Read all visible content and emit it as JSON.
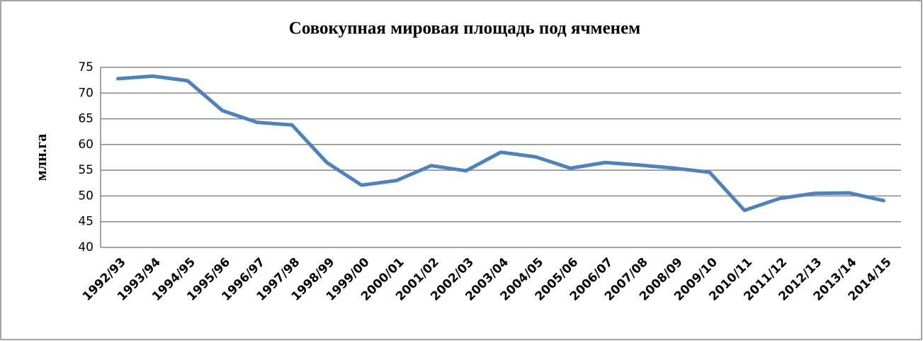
{
  "chart_data": {
    "type": "line",
    "title": "Совокупная мировая площадь под ячменем",
    "y_label": "млн.га",
    "categories": [
      "1992/93",
      "1993/94",
      "1994/95",
      "1995/96",
      "1996/97",
      "1997/98",
      "1998/99",
      "1999/00",
      "2000/01",
      "2001/02",
      "2002/03",
      "2003/04",
      "2004/05",
      "2005/06",
      "2006/07",
      "2007/08",
      "2008/09",
      "2009/10",
      "2010/11",
      "2011/12",
      "2012/13",
      "2013/14",
      "2014/15"
    ],
    "series": [
      {
        "name": "млн.га",
        "color": "#4f81bd",
        "values": [
          72.8,
          73.3,
          72.4,
          66.6,
          64.3,
          63.8,
          56.5,
          52.1,
          53.0,
          55.9,
          54.9,
          58.5,
          57.6,
          55.4,
          56.5,
          56.0,
          55.4,
          54.6,
          47.2,
          49.5,
          50.5,
          50.6,
          49.1
        ]
      }
    ],
    "ylim": [
      40,
      75
    ],
    "yticks": [
      40,
      45,
      50,
      55,
      60,
      65,
      70,
      75
    ],
    "grid": true
  }
}
